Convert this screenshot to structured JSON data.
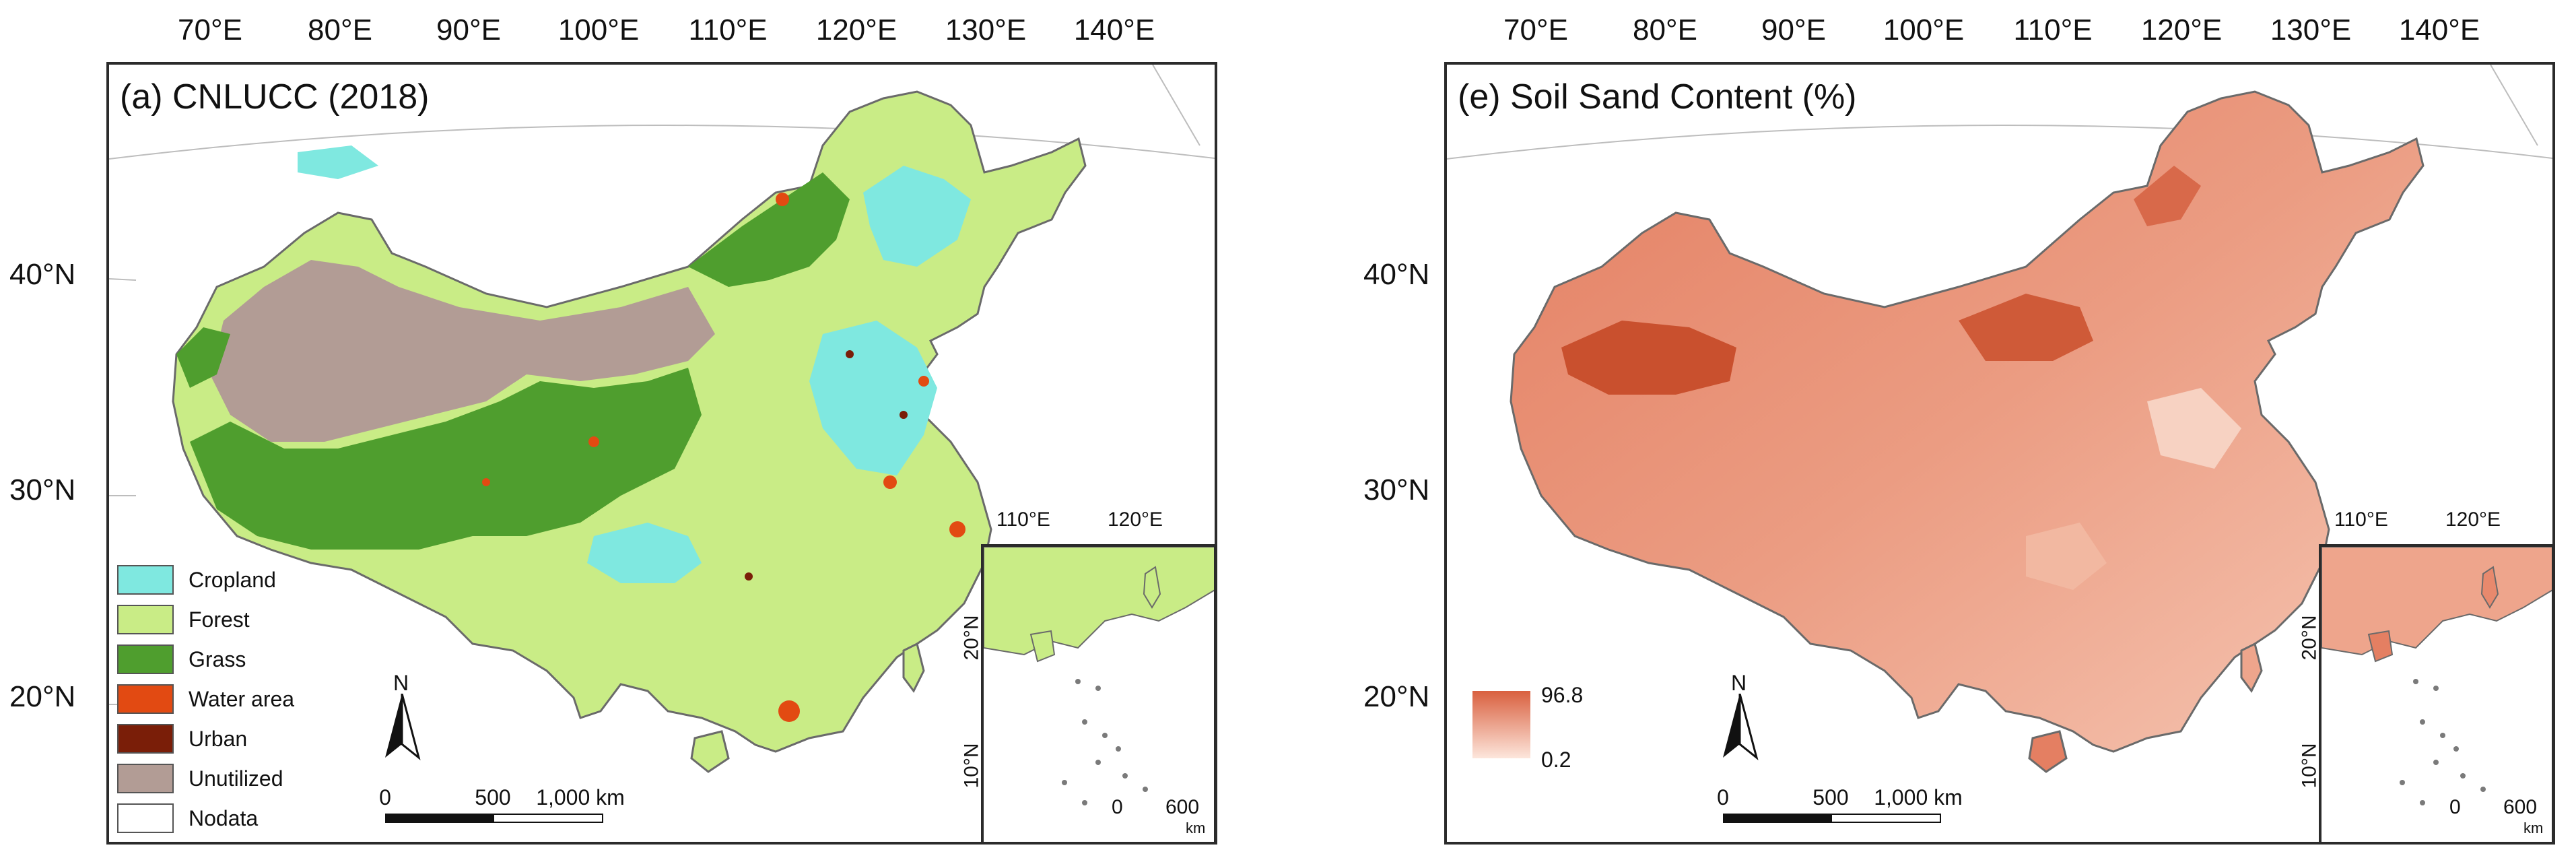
{
  "panels": [
    {
      "title": "(a) CNLUCC (2018)",
      "top_ticks": [
        "70°E",
        "80°E",
        "90°E",
        "100°E",
        "110°E",
        "120°E",
        "130°E",
        "140°E"
      ],
      "left_ticks": [
        "40°N",
        "30°N",
        "20°N"
      ],
      "inset_top_ticks": [
        "110°E",
        "120°E"
      ],
      "inset_left_ticks": [
        "20°N",
        "10°N"
      ],
      "inset_scale": [
        "0",
        "600",
        "km"
      ],
      "north": "N",
      "scale": [
        "0",
        "500",
        "1,000 km"
      ],
      "legend": [
        {
          "label": "Cropland",
          "color": "#7fe8e0"
        },
        {
          "label": "Forest",
          "color": "#c9ec86"
        },
        {
          "label": "Grass",
          "color": "#4f9e2e"
        },
        {
          "label": "Water area",
          "color": "#e24a12"
        },
        {
          "label": "Urban",
          "color": "#7a1e08"
        },
        {
          "label": "Unutilized",
          "color": "#b29c95"
        },
        {
          "label": "Nodata",
          "color": "#ffffff"
        }
      ]
    },
    {
      "title": "(e) Soil Sand Content (%)",
      "top_ticks": [
        "70°E",
        "80°E",
        "90°E",
        "100°E",
        "110°E",
        "120°E",
        "130°E",
        "140°E"
      ],
      "left_ticks": [
        "40°N",
        "30°N",
        "20°N"
      ],
      "inset_top_ticks": [
        "110°E",
        "120°E"
      ],
      "inset_left_ticks": [
        "20°N",
        "10°N"
      ],
      "inset_scale": [
        "0",
        "600",
        "km"
      ],
      "north": "N",
      "scale": [
        "0",
        "500",
        "1,000 km"
      ],
      "colorbar": {
        "max": "96.8",
        "min": "0.2",
        "high_color": "#d9603f",
        "low_color": "#fde6dc"
      }
    }
  ]
}
